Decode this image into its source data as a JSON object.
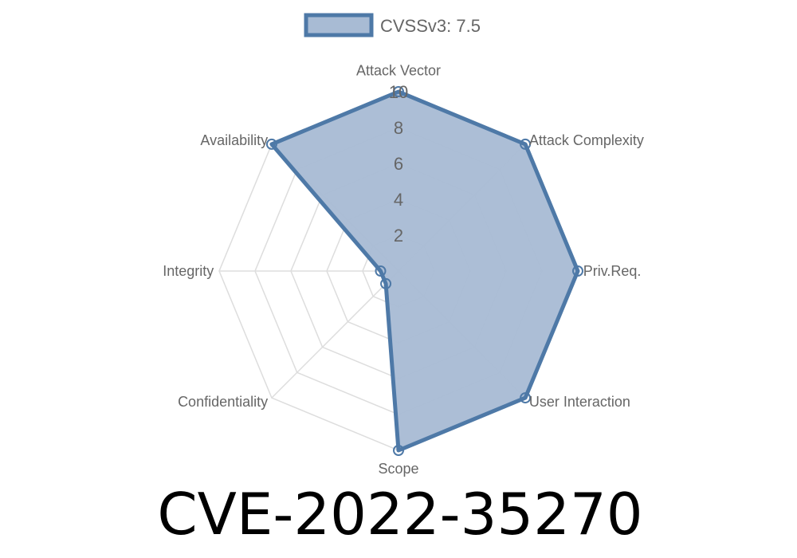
{
  "chart_data": {
    "type": "radar",
    "axes": [
      "Attack Vector",
      "Attack Complexity",
      "Priv.Req.",
      "User Interaction",
      "Scope",
      "Confidentiality",
      "Integrity",
      "Availability"
    ],
    "series": [
      {
        "name": "CVSSv3: 7.5",
        "values": [
          10,
          10,
          10,
          10,
          10,
          1,
          1,
          10
        ]
      }
    ],
    "range": [
      0,
      10
    ],
    "ticks": [
      "2",
      "4",
      "6",
      "8",
      "10"
    ],
    "tick_values": [
      2,
      4,
      6,
      8,
      10
    ],
    "grid": true,
    "legend": "top",
    "colors": {
      "line": "#4e79a7",
      "fill": "#a8bbd4",
      "grid": "#dddddd"
    }
  },
  "title": "CVE-2022-35270"
}
